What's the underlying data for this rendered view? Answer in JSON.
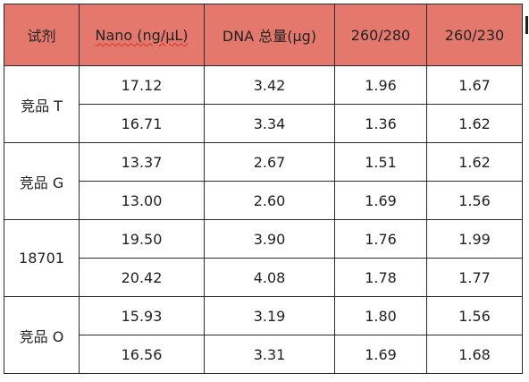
{
  "table": {
    "headers": {
      "reagent": "试剂",
      "nano": "Nano (ng/μL)",
      "dna_total": "DNA 总量(μg)",
      "ratio_260_280": "260/280",
      "ratio_260_230": "260/230"
    },
    "groups": [
      {
        "reagent": "竞品 T",
        "rows": [
          {
            "nano": "17.12",
            "dna": "3.42",
            "r280": "1.96",
            "r230": "1.67"
          },
          {
            "nano": "16.71",
            "dna": "3.34",
            "r280": "1.36",
            "r230": "1.62"
          }
        ]
      },
      {
        "reagent": "竞品 G",
        "rows": [
          {
            "nano": "13.37",
            "dna": "2.67",
            "r280": "1.51",
            "r230": "1.62"
          },
          {
            "nano": "13.00",
            "dna": "2.60",
            "r280": "1.69",
            "r230": "1.56"
          }
        ]
      },
      {
        "reagent": "18701",
        "rows": [
          {
            "nano": "19.50",
            "dna": "3.90",
            "r280": "1.76",
            "r230": "1.99"
          },
          {
            "nano": "20.42",
            "dna": "4.08",
            "r280": "1.78",
            "r230": "1.77"
          }
        ]
      },
      {
        "reagent": "竞品 O",
        "rows": [
          {
            "nano": "15.93",
            "dna": "3.19",
            "r280": "1.80",
            "r230": "1.56"
          },
          {
            "nano": "16.56",
            "dna": "3.31",
            "r280": "1.69",
            "r230": "1.68"
          }
        ]
      }
    ]
  },
  "colors": {
    "header_bg": "#e5786c",
    "border": "#2b2b2b",
    "spellcheck_underline": "#d0342c"
  }
}
